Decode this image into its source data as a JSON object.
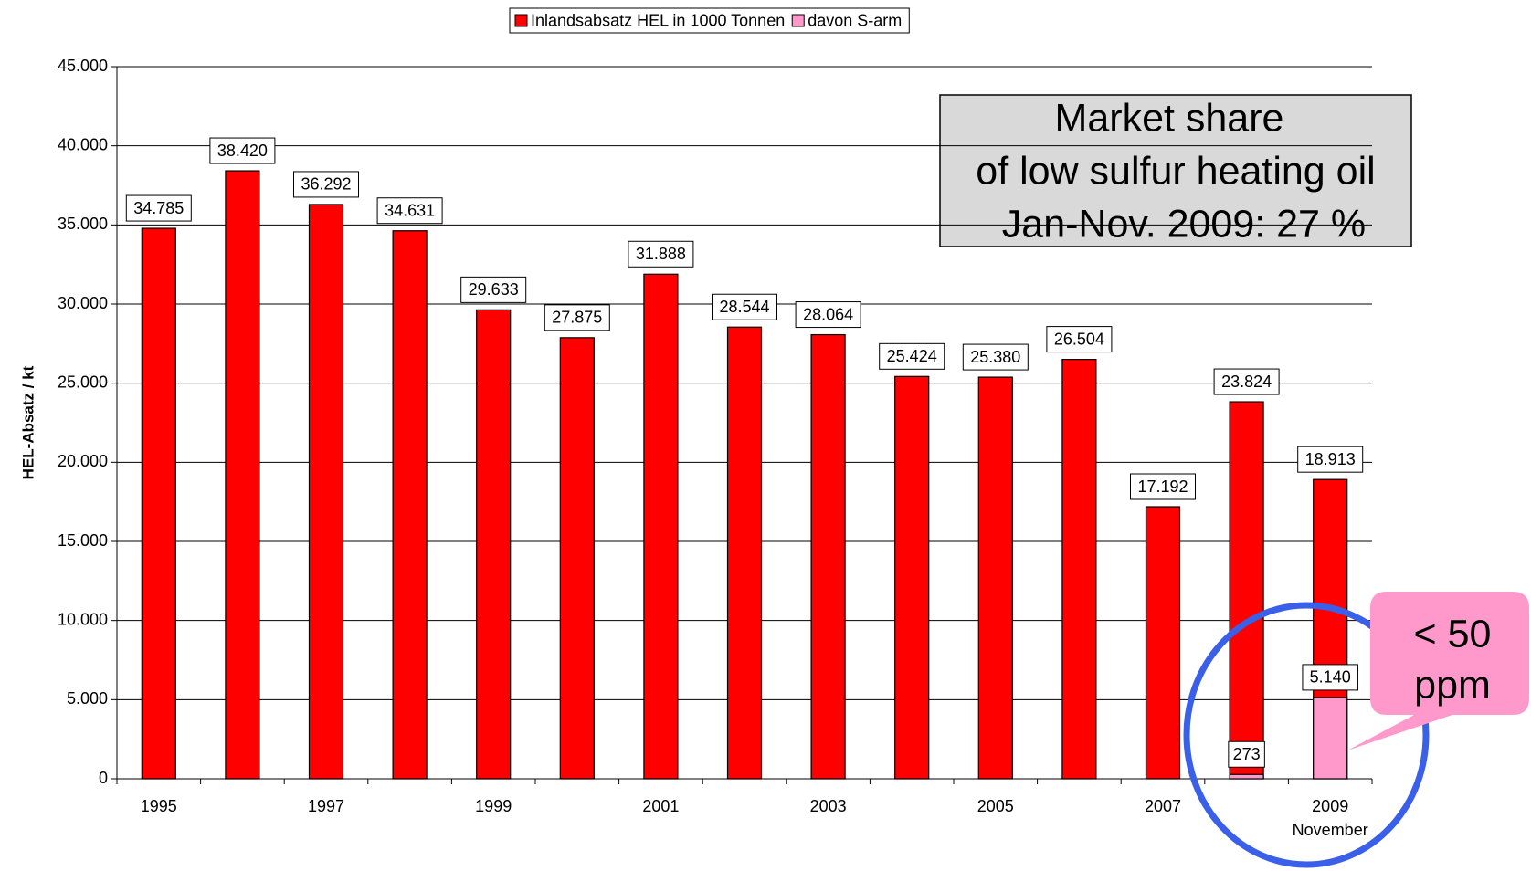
{
  "chart_data": {
    "type": "bar",
    "overlap": true,
    "categories": [
      "1995",
      null,
      "1997",
      null,
      "1999",
      null,
      "2001",
      null,
      "2003",
      null,
      "2005",
      null,
      "2007",
      null,
      "2009"
    ],
    "x_sublabel": {
      "index": 14,
      "text": "November"
    },
    "ylabel": "HEL-Absatz / kt",
    "series": [
      {
        "name": "Inlandsabsatz HEL in 1000 Tonnen",
        "color": "#ff0000",
        "values": [
          34785,
          38420,
          36292,
          34631,
          29633,
          27875,
          31888,
          28544,
          28064,
          25424,
          25380,
          26504,
          17192,
          23824,
          18913
        ],
        "value_labels": [
          "34.785",
          "38.420",
          "36.292",
          "34.631",
          "29.633",
          "27.875",
          "31.888",
          "28.544",
          "28.064",
          "25.424",
          "25.380",
          "26.504",
          "17.192",
          "23.824",
          "18.913"
        ]
      },
      {
        "name": "davon S-arm",
        "color": "#ff99cc",
        "values": [
          null,
          null,
          null,
          null,
          null,
          null,
          null,
          null,
          null,
          null,
          null,
          null,
          null,
          273,
          5140
        ],
        "value_labels": [
          null,
          null,
          null,
          null,
          null,
          null,
          null,
          null,
          null,
          null,
          null,
          null,
          null,
          "273",
          "5.140"
        ]
      }
    ],
    "ylim": [
      0,
      45000
    ],
    "yticks": [
      0,
      {
        "value": 5000,
        "label": "5.000"
      },
      {
        "value": 10000,
        "label": "10.000"
      },
      {
        "value": 15000,
        "label": "15.000"
      },
      {
        "value": 20000,
        "label": "20.000"
      },
      {
        "value": 25000,
        "label": "25.000"
      },
      {
        "value": 30000,
        "label": "30.000"
      },
      {
        "value": 35000,
        "label": "35.000"
      },
      {
        "value": 40000,
        "label": "40.000"
      },
      {
        "value": 45000,
        "label": "45.000"
      }
    ],
    "grid": true,
    "legend": "top",
    "annotations": [
      {
        "lines": [
          "Market share",
          "of low sulfur heating oil",
          " Jan-Nov. 2009: 27 %"
        ]
      },
      {
        "lines": [
          "< 50",
          "ppm"
        ]
      }
    ]
  }
}
